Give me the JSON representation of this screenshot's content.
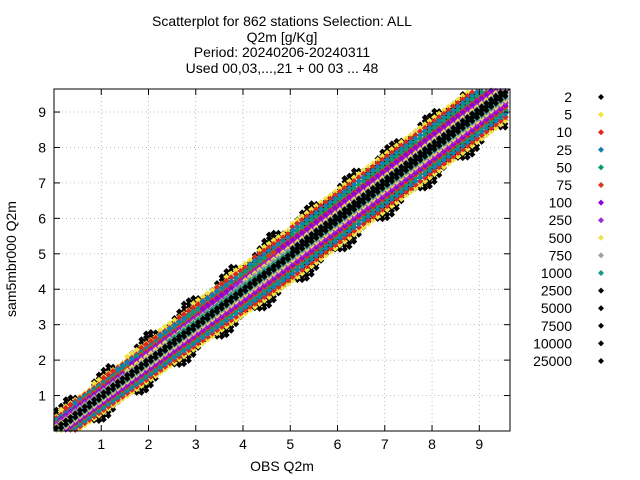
{
  "chart_data": {
    "type": "scatter",
    "title_lines": [
      "Scatterplot for  862 stations Selection: ALL",
      "Q2m [g/Kg]",
      "Period: 20240206-20240311",
      "Used 00,03,...,21 + 00 03 ... 48"
    ],
    "xlabel": "OBS Q2m",
    "ylabel": "sam5mbr000 Q2m",
    "xlim": [
      0,
      9.65
    ],
    "ylim": [
      0,
      9.65
    ],
    "xticks": [
      1,
      2,
      3,
      4,
      5,
      6,
      7,
      8,
      9
    ],
    "yticks": [
      1,
      2,
      3,
      4,
      5,
      6,
      7,
      8,
      9
    ],
    "grid": true,
    "diagonal_line": true,
    "legend_placement": "right",
    "series": [
      {
        "name": "2",
        "color": "#000000",
        "halfwidth": 0.9
      },
      {
        "name": "5",
        "color": "#f2e340",
        "halfwidth": 0.8
      },
      {
        "name": "10",
        "color": "#e0261a",
        "halfwidth": 0.7
      },
      {
        "name": "25",
        "color": "#0f7fb8",
        "halfwidth": 0.6
      },
      {
        "name": "50",
        "color": "#0a9a78",
        "halfwidth": 0.5
      },
      {
        "name": "75",
        "color": "#d93a1a",
        "halfwidth": 0.42
      },
      {
        "name": "100",
        "color": "#9400d3",
        "halfwidth": 0.36
      },
      {
        "name": "250",
        "color": "#9b2ad8",
        "halfwidth": 0.28
      },
      {
        "name": "500",
        "color": "#f0e050",
        "halfwidth": 0.22
      },
      {
        "name": "750",
        "color": "#a0a0a0",
        "halfwidth": 0.17
      },
      {
        "name": "1000",
        "color": "#1a9a80",
        "halfwidth": 0.13
      },
      {
        "name": "2500",
        "color": "#000000",
        "halfwidth": 0.1
      },
      {
        "name": "5000",
        "color": "#000000",
        "halfwidth": 0.0
      },
      {
        "name": "7500",
        "color": "#000000",
        "halfwidth": 0.0
      },
      {
        "name": "10000",
        "color": "#000000",
        "halfwidth": 0.0
      },
      {
        "name": "25000",
        "color": "#000000",
        "halfwidth": 0.0
      }
    ]
  }
}
